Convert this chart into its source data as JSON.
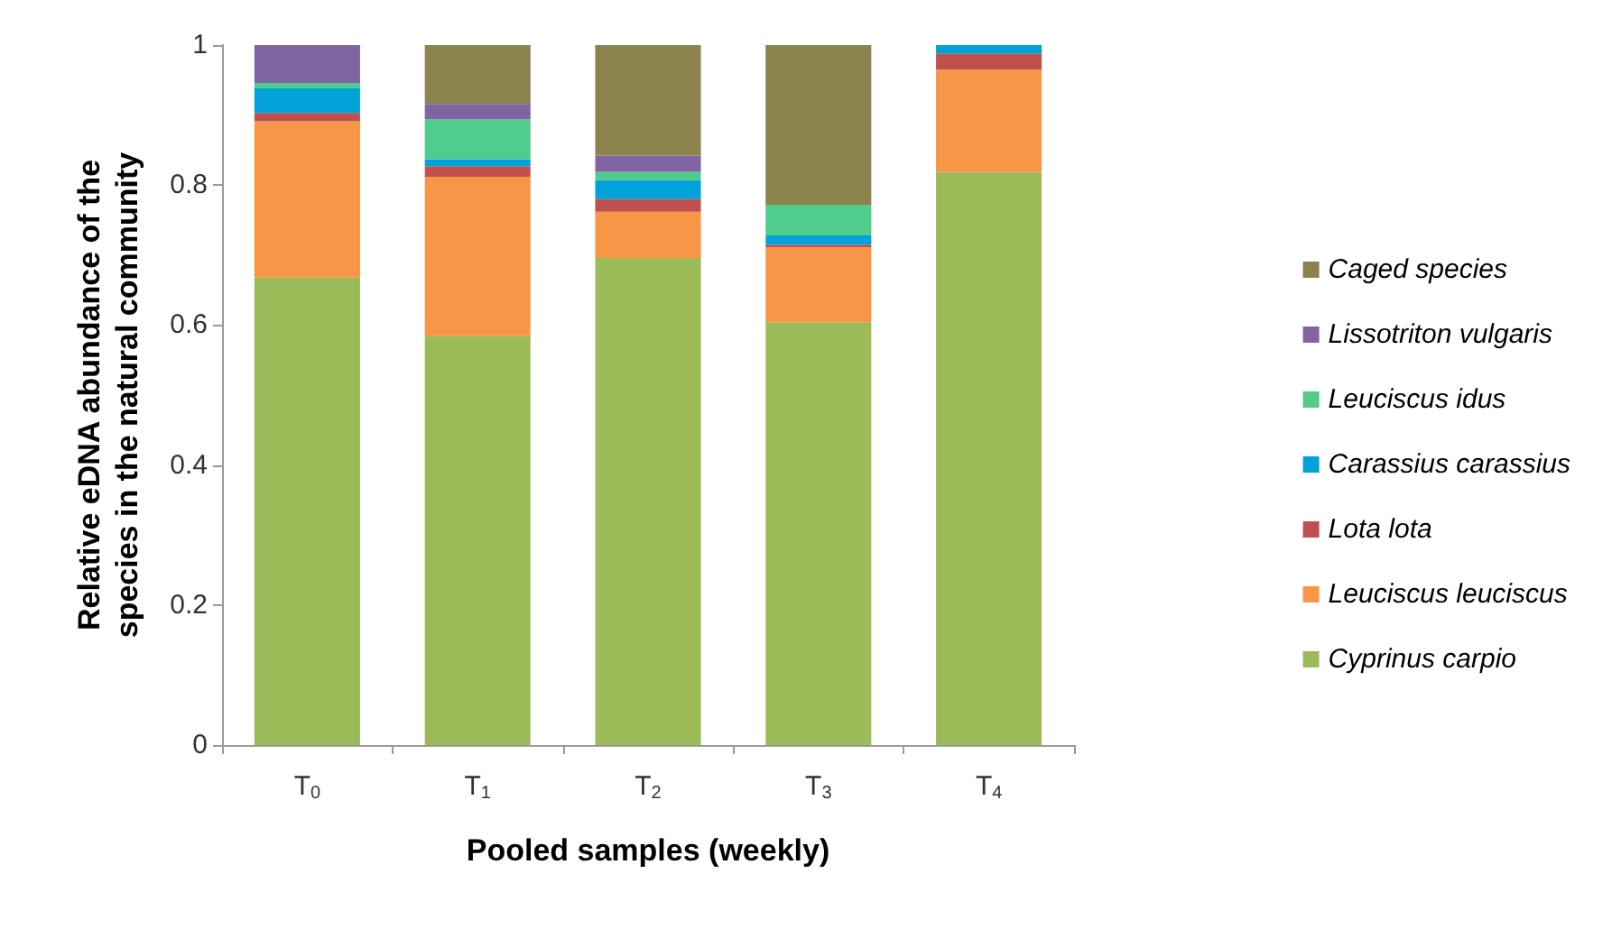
{
  "chart_data": {
    "type": "bar",
    "stacked": true,
    "xlabel": "Pooled samples (weekly)",
    "ylabel": "Relative eDNA abundance of the species in the natural community",
    "categories": [
      "T$_{0}$",
      "T$_{1}$",
      "T$_{2}$",
      "T$_{3}$",
      "T$_{4}$"
    ],
    "series": [
      {
        "name": "Cyprinus carpio",
        "color": "#9bbb59",
        "values": [
          0.668,
          0.584,
          0.696,
          0.604,
          0.819
        ]
      },
      {
        "name": "Leuciscus leuciscus",
        "color": "#f79646",
        "values": [
          0.223,
          0.228,
          0.066,
          0.107,
          0.146
        ]
      },
      {
        "name": "Lota lota",
        "color": "#c0504d",
        "values": [
          0.012,
          0.015,
          0.018,
          0.004,
          0.023
        ]
      },
      {
        "name": "Carassius carassius",
        "color": "#00a2d9",
        "values": [
          0.035,
          0.01,
          0.027,
          0.013,
          0.012
        ]
      },
      {
        "name": "Leuciscus idus",
        "color": "#4fcb8b",
        "values": [
          0.008,
          0.057,
          0.012,
          0.044,
          0
        ]
      },
      {
        "name": "Lissotriton vulgaris",
        "color": "#8064a2",
        "values": [
          0.054,
          0.022,
          0.023,
          0,
          0
        ]
      },
      {
        "name": "Caged species",
        "color": "#8b824d",
        "values": [
          0,
          0.084,
          0.158,
          0.228,
          0
        ]
      }
    ],
    "ylim": [
      0,
      1
    ],
    "yticks": [
      0,
      0.2,
      0.4,
      0.6,
      0.8,
      1
    ],
    "grid": false,
    "legend": "right"
  }
}
